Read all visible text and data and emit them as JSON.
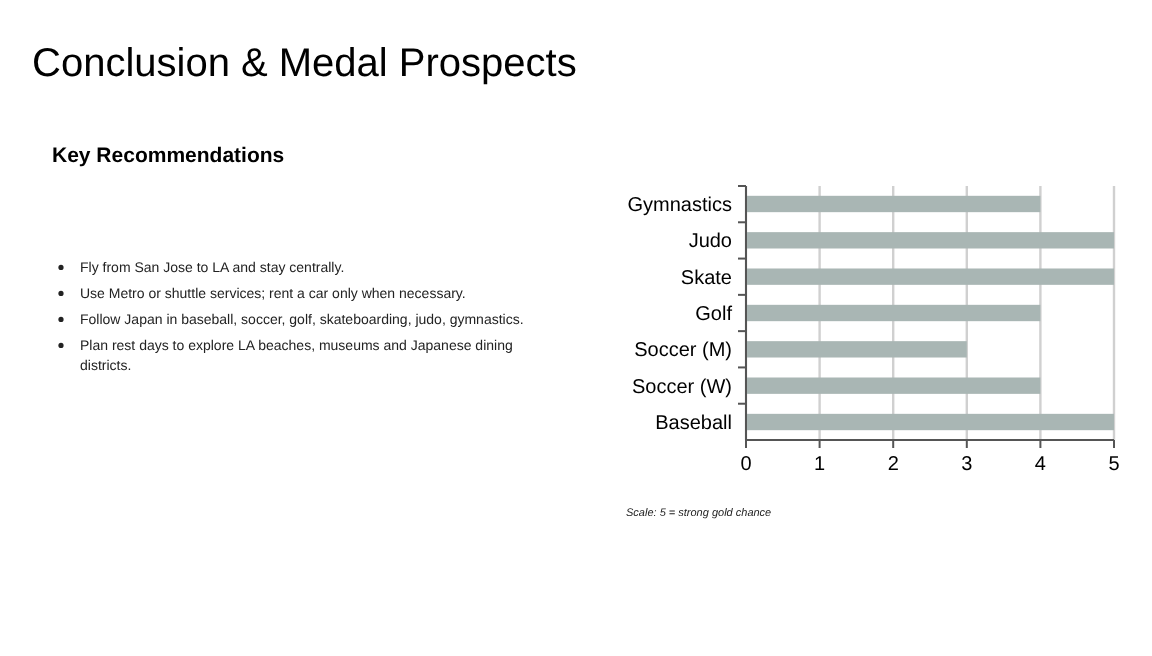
{
  "chart_data": {
    "type": "bar",
    "orientation": "horizontal",
    "title": "Conclusion & Medal Prospects",
    "subtitle": "Key Recommendations",
    "categories": [
      "Gymnastics",
      "Judo",
      "Skate",
      "Golf",
      "Soccer (M)",
      "Soccer (W)",
      "Baseball"
    ],
    "values": [
      4,
      5,
      5,
      4,
      3,
      4,
      5
    ],
    "color": "#a9b6b4",
    "xlim": [
      0,
      5
    ],
    "xticks": [
      0,
      1,
      2,
      3,
      4,
      5
    ],
    "grid": "x",
    "annotations": [
      "Fly from San Jose to LA and stay centrally.",
      "Use Metro or shuttle services; rent a car only when necessary.",
      "Follow Japan in baseball, soccer, golf, skateboarding, judo, gymnastics.",
      "Plan rest days to explore LA beaches, museums and Japanese dining districts.",
      "Scale: 5 = strong gold chance"
    ]
  }
}
